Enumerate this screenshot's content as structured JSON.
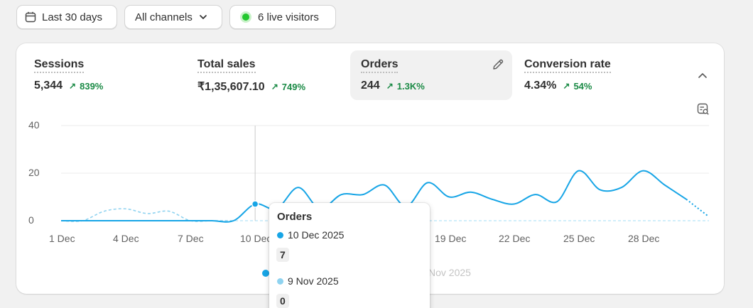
{
  "filters": {
    "date_range": "Last 30 days",
    "channels": "All channels",
    "live_visitors": "6 live visitors"
  },
  "metrics": [
    {
      "label": "Sessions",
      "value": "5,344",
      "change": "839%"
    },
    {
      "label": "Total sales",
      "value": "₹1,35,607.10",
      "change": "749%"
    },
    {
      "label": "Orders",
      "value": "244",
      "change": "1.3K%",
      "selected": true
    },
    {
      "label": "Conversion rate",
      "value": "4.34%",
      "change": "54%"
    }
  ],
  "colors": {
    "primary_series": "#17a5e6",
    "comparison_series": "#8fd3f0",
    "positive_change": "#1a8a45",
    "live_dot": "#22c82e"
  },
  "chart_data": {
    "type": "line",
    "y_ticks": [
      "40",
      "20",
      "0"
    ],
    "ylim": [
      0,
      40
    ],
    "x_ticks": [
      "1 Dec",
      "4 Dec",
      "7 Dec",
      "10 Dec",
      "19 Dec",
      "22 Dec",
      "25 Dec",
      "28 Dec"
    ],
    "series": [
      {
        "name": "",
        "x": [
          "1 Dec",
          "2 Dec",
          "3 Dec",
          "4 Dec",
          "5 Dec",
          "6 Dec",
          "7 Dec",
          "8 Dec",
          "9 Dec",
          "10 Dec",
          "11 Dec",
          "12 Dec",
          "13 Dec",
          "14 Dec",
          "15 Dec",
          "16 Dec",
          "17 Dec",
          "18 Dec",
          "19 Dec",
          "20 Dec",
          "21 Dec",
          "22 Dec",
          "23 Dec",
          "24 Dec",
          "25 Dec",
          "26 Dec",
          "27 Dec",
          "28 Dec",
          "29 Dec",
          "30 Dec",
          "31 Dec"
        ],
        "values": [
          0,
          0,
          0,
          0,
          0,
          0,
          0,
          0,
          0,
          7,
          5,
          14,
          5,
          11,
          11,
          15,
          6,
          16,
          10,
          12,
          9,
          7,
          11,
          8,
          21,
          13,
          14,
          21,
          15,
          9,
          2
        ]
      },
      {
        "name": "",
        "values": [
          0,
          0,
          4,
          5,
          3,
          4,
          0,
          0,
          0,
          0,
          0,
          0,
          0,
          0,
          0,
          0,
          0,
          0,
          0,
          0,
          0,
          0,
          0,
          0,
          0,
          0,
          0,
          0,
          0,
          0,
          0
        ]
      }
    ],
    "legend_partial": "Nov 2025"
  },
  "tooltip": {
    "title": "Orders",
    "current_date": "10 Dec 2025",
    "current_value": "7",
    "previous_date": "9 Nov 2025",
    "previous_value": "0"
  }
}
